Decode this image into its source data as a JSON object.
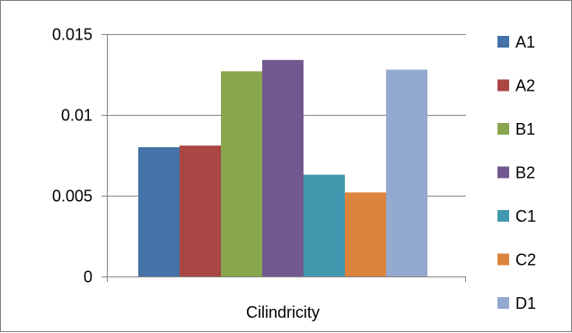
{
  "chart_data": {
    "type": "bar",
    "categories": [
      "Cilindricity"
    ],
    "series": [
      {
        "name": "A1",
        "values": [
          0.008
        ],
        "color": "#4572A7"
      },
      {
        "name": "A2",
        "values": [
          0.0081
        ],
        "color": "#AA4643"
      },
      {
        "name": "B1",
        "values": [
          0.0127
        ],
        "color": "#89A54E"
      },
      {
        "name": "B2",
        "values": [
          0.0134
        ],
        "color": "#71588F"
      },
      {
        "name": "C1",
        "values": [
          0.0063
        ],
        "color": "#4198AF"
      },
      {
        "name": "C2",
        "values": [
          0.0052
        ],
        "color": "#DB843D"
      },
      {
        "name": "D1",
        "values": [
          0.0128
        ],
        "color": "#93A9CF"
      }
    ],
    "title": "",
    "xlabel": "",
    "ylabel": "",
    "ylim": [
      0,
      0.015
    ],
    "yticks": [
      {
        "value": 0,
        "label": "0"
      },
      {
        "value": 0.005,
        "label": "0.005"
      },
      {
        "value": 0.01,
        "label": "0.01"
      },
      {
        "value": 0.015,
        "label": "0.015"
      }
    ],
    "grid": true,
    "legend": "right"
  }
}
